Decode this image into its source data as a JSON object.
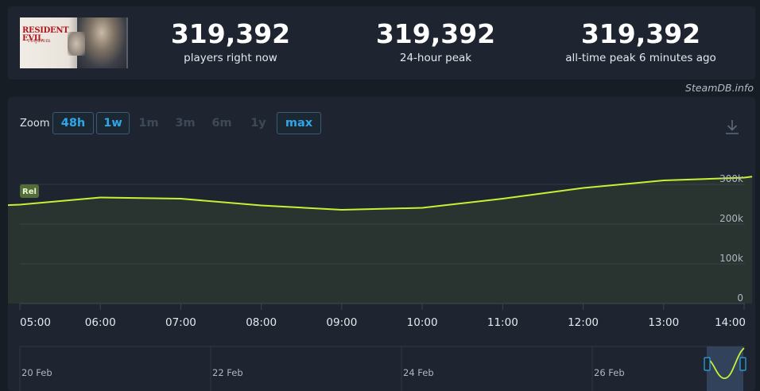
{
  "header": {
    "game_cover": {
      "title": "RESIDENT EVIL",
      "subtitle": "requiem",
      "icon": "game-cover-image"
    },
    "stats": [
      {
        "value": "319,392",
        "label": "players right now"
      },
      {
        "value": "319,392",
        "label": "24-hour peak"
      },
      {
        "value": "319,392",
        "label": "all-time peak 6 minutes ago"
      }
    ]
  },
  "watermark": "SteamDB.info",
  "toolbar": {
    "zoom_label": "Zoom",
    "zoom_options": [
      {
        "label": "48h",
        "state": "active"
      },
      {
        "label": "1w",
        "state": "active"
      },
      {
        "label": "1m",
        "state": "disabled"
      },
      {
        "label": "3m",
        "state": "disabled"
      },
      {
        "label": "6m",
        "state": "disabled"
      },
      {
        "label": "1y",
        "state": "disabled"
      },
      {
        "label": "max",
        "state": "active"
      }
    ],
    "download_icon": "download-icon"
  },
  "colors": {
    "line": "#c6f135",
    "accent": "#2fa6e8",
    "release_badge": "#546b3a"
  },
  "chart_data": {
    "type": "area",
    "x": [
      "04:40",
      "05:00",
      "06:00",
      "07:00",
      "08:00",
      "09:00",
      "10:00",
      "11:00",
      "12:00",
      "13:00",
      "14:00",
      "14:06"
    ],
    "x_tick_labels": [
      "05:00",
      "06:00",
      "07:00",
      "08:00",
      "09:00",
      "10:00",
      "11:00",
      "12:00",
      "13:00",
      "14:00"
    ],
    "series": [
      {
        "values": [
          246000,
          249000,
          267000,
          264000,
          247000,
          236000,
          241000,
          264000,
          291000,
          310000,
          317000,
          319392
        ]
      }
    ],
    "ylim": [
      0,
      319392
    ],
    "y_ticks": [
      0,
      100000,
      200000,
      300000
    ],
    "y_tick_labels": [
      "0",
      "100k",
      "200k",
      "300k"
    ],
    "grid": true,
    "legend": "none",
    "annotations": [
      {
        "label": "Rel",
        "x": "04:40"
      }
    ],
    "navigator": {
      "labels": [
        "20 Feb",
        "22 Feb",
        "24 Feb",
        "26 Feb"
      ]
    }
  }
}
